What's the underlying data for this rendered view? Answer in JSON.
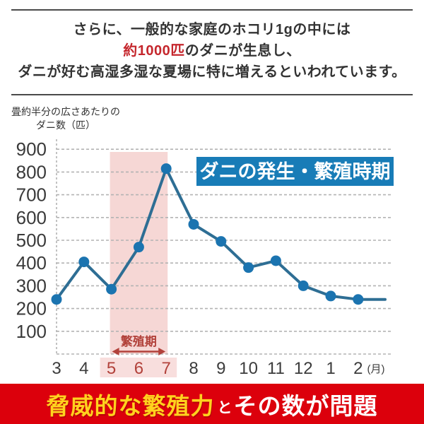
{
  "header": {
    "line1": "さらに、一般的な家庭のホコリ1gの中には",
    "line2_highlight": "約1000匹",
    "line2_rest": "のダニが生息し、",
    "line3": "ダニが好む高湿多湿な夏場に特に増えるといわれています。"
  },
  "chart_data": {
    "type": "line",
    "title": "ダニの発生・繁殖時期",
    "ylabel_line1": "畳約半分の広さあたりの",
    "ylabel_line2": "ダニ数（匹）",
    "x_unit": "(月)",
    "categories": [
      "3",
      "4",
      "5",
      "6",
      "7",
      "8",
      "9",
      "10",
      "11",
      "12",
      "1",
      "2"
    ],
    "values": [
      240,
      405,
      285,
      470,
      815,
      570,
      495,
      380,
      410,
      300,
      255,
      240
    ],
    "yticks": [
      100,
      200,
      300,
      400,
      500,
      600,
      700,
      800,
      900
    ],
    "ylim": [
      0,
      950
    ],
    "grid": "horizontal-dashed",
    "legend": "none",
    "highlight_region": {
      "label": "繁殖期",
      "from_month": "5",
      "to_month": "7"
    }
  },
  "footer": {
    "highlight": "脅威的な繁殖力",
    "connector": "と",
    "rest": "その数が問題"
  },
  "colors": {
    "accent_red": "#c5272d",
    "text_dark": "#333333",
    "line_blue": "#2e6e94",
    "marker_blue": "#1b74b0",
    "badge_blue": "#187cb7",
    "band_pink": "#f6d7d5",
    "band_pink_light": "#f8dedd",
    "breeding_red": "#b2423b",
    "xlabel_gray": "#3c3c3c",
    "grid_gray": "#b3b3b3",
    "footer_red": "#dc000c",
    "footer_yellow": "#ffd21e"
  }
}
